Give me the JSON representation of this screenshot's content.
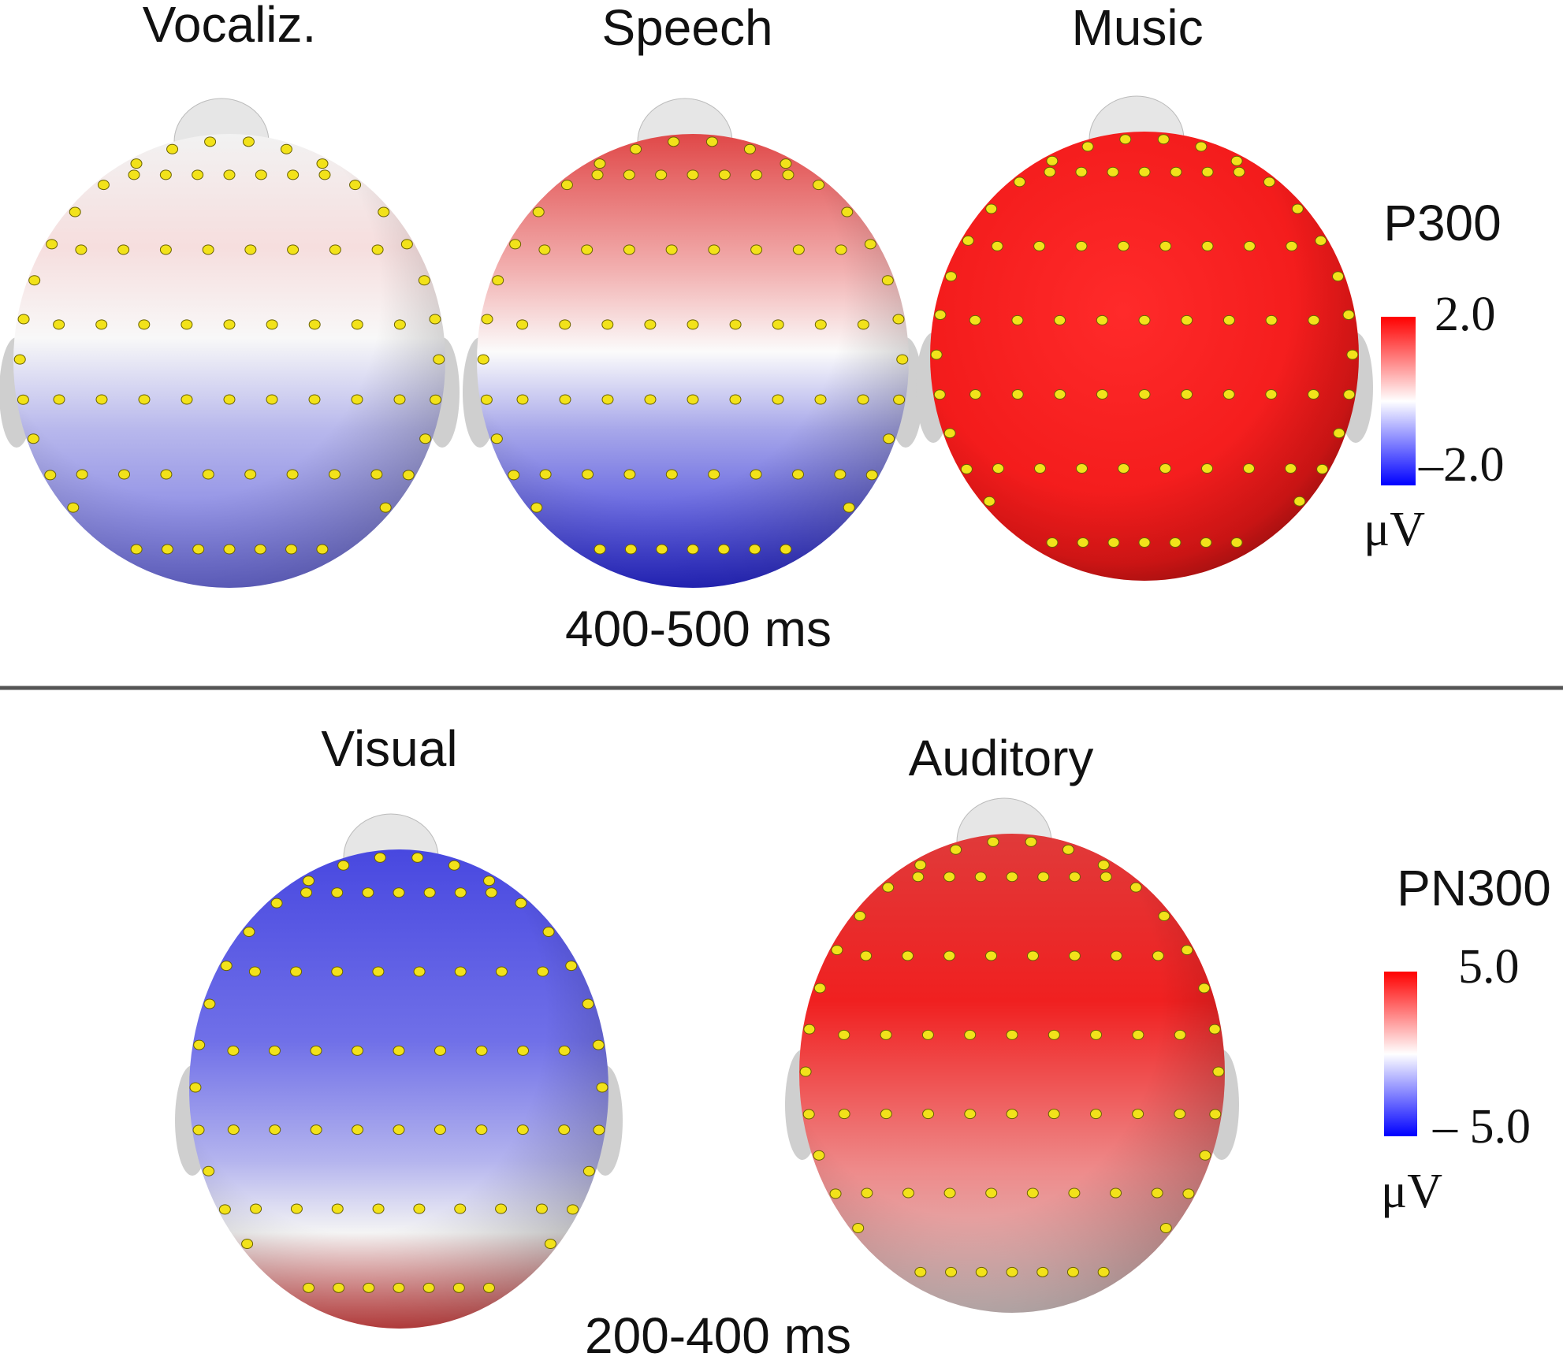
{
  "panels": [
    {
      "time": "400-500 ms",
      "maps": [
        {
          "label": "Vocaliz."
        },
        {
          "label": "Speech"
        },
        {
          "label": "Music"
        }
      ],
      "legend": {
        "title": "P300",
        "max": "2.0",
        "min": "–2.0",
        "unit": "μV"
      }
    },
    {
      "time": "200-400 ms",
      "maps": [
        {
          "label": "Visual"
        },
        {
          "label": "Auditory"
        }
      ],
      "legend": {
        "title": "PN300",
        "max": "5.0",
        "min": "– 5.0",
        "unit": "μV"
      }
    }
  ]
}
